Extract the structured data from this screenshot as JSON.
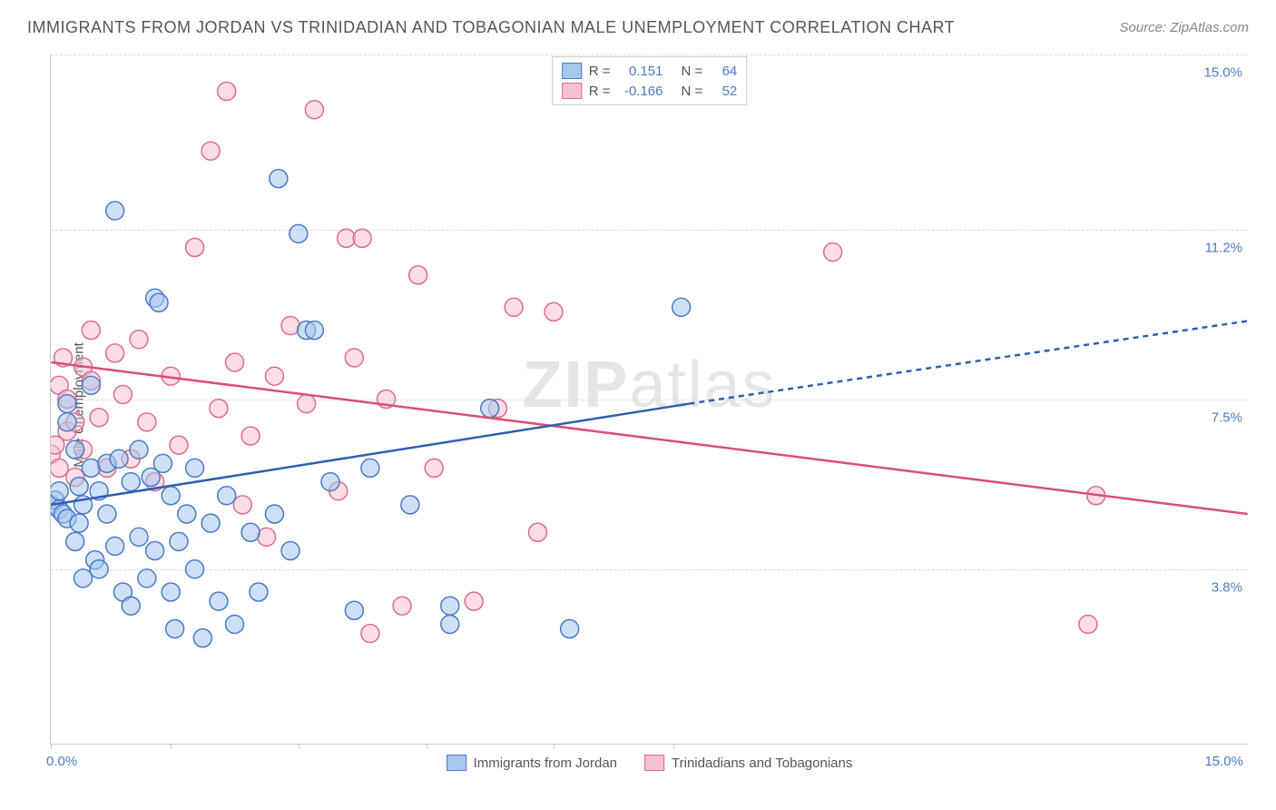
{
  "title": "IMMIGRANTS FROM JORDAN VS TRINIDADIAN AND TOBAGONIAN MALE UNEMPLOYMENT CORRELATION CHART",
  "source_label": "Source: ZipAtlas.com",
  "ylabel": "Male Unemployment",
  "watermark_bold": "ZIP",
  "watermark_light": "atlas",
  "colors": {
    "blue_fill": "#a6c7ee",
    "blue_stroke": "#4a7ac7",
    "pink_fill": "#f7c2cf",
    "pink_stroke": "#e06b8b",
    "blue_line": "#2e5fb0",
    "pink_line": "#d94f75",
    "grid": "#dddddd",
    "text": "#555555",
    "accent": "#4a7ac7",
    "background": "#ffffff"
  },
  "chart": {
    "type": "scatter",
    "xlim": [
      0,
      15
    ],
    "ylim": [
      0,
      15
    ],
    "ytick_positions": [
      3.8,
      7.5,
      11.2,
      15.0
    ],
    "ytick_labels": [
      "3.8%",
      "7.5%",
      "11.2%",
      "15.0%"
    ],
    "xtick_positions": [
      0,
      1.5,
      3.1,
      4.7,
      6.3,
      7.8
    ],
    "x_min_label": "0.0%",
    "x_max_label": "15.0%",
    "marker_radius": 10,
    "marker_opacity": 0.55,
    "line_width": 2.5
  },
  "legend_top": {
    "r_label": "R  =",
    "n_label": "N  =",
    "rows": [
      {
        "swatch": "blue",
        "r": "0.151",
        "n": "64"
      },
      {
        "swatch": "pink",
        "r": "-0.166",
        "n": "52"
      }
    ]
  },
  "legend_bottom": [
    {
      "swatch": "blue",
      "label": "Immigrants from Jordan"
    },
    {
      "swatch": "pink",
      "label": "Trinidadians and Tobagonians"
    }
  ],
  "series_blue": {
    "points": [
      [
        0.0,
        5.2
      ],
      [
        0.05,
        5.3
      ],
      [
        0.1,
        5.1
      ],
      [
        0.1,
        5.5
      ],
      [
        0.15,
        5.0
      ],
      [
        0.2,
        7.0
      ],
      [
        0.2,
        7.4
      ],
      [
        0.2,
        4.9
      ],
      [
        0.3,
        6.4
      ],
      [
        0.3,
        4.4
      ],
      [
        0.35,
        5.6
      ],
      [
        0.35,
        4.8
      ],
      [
        0.4,
        5.2
      ],
      [
        0.4,
        3.6
      ],
      [
        0.5,
        7.8
      ],
      [
        0.5,
        6.0
      ],
      [
        0.55,
        4.0
      ],
      [
        0.6,
        5.5
      ],
      [
        0.6,
        3.8
      ],
      [
        0.7,
        6.1
      ],
      [
        0.7,
        5.0
      ],
      [
        0.8,
        11.6
      ],
      [
        0.8,
        4.3
      ],
      [
        0.85,
        6.2
      ],
      [
        0.9,
        3.3
      ],
      [
        1.0,
        5.7
      ],
      [
        1.0,
        3.0
      ],
      [
        1.1,
        6.4
      ],
      [
        1.1,
        4.5
      ],
      [
        1.2,
        3.6
      ],
      [
        1.25,
        5.8
      ],
      [
        1.3,
        9.7
      ],
      [
        1.3,
        4.2
      ],
      [
        1.35,
        9.6
      ],
      [
        1.4,
        6.1
      ],
      [
        1.5,
        3.3
      ],
      [
        1.5,
        5.4
      ],
      [
        1.55,
        2.5
      ],
      [
        1.6,
        4.4
      ],
      [
        1.7,
        5.0
      ],
      [
        1.8,
        6.0
      ],
      [
        1.8,
        3.8
      ],
      [
        1.9,
        2.3
      ],
      [
        2.0,
        4.8
      ],
      [
        2.1,
        3.1
      ],
      [
        2.2,
        5.4
      ],
      [
        2.3,
        2.6
      ],
      [
        2.5,
        4.6
      ],
      [
        2.6,
        3.3
      ],
      [
        2.8,
        5.0
      ],
      [
        2.85,
        12.3
      ],
      [
        3.0,
        4.2
      ],
      [
        3.1,
        11.1
      ],
      [
        3.2,
        9.0
      ],
      [
        3.3,
        9.0
      ],
      [
        3.5,
        5.7
      ],
      [
        3.8,
        2.9
      ],
      [
        4.0,
        6.0
      ],
      [
        4.5,
        5.2
      ],
      [
        5.0,
        2.6
      ],
      [
        5.0,
        3.0
      ],
      [
        5.5,
        7.3
      ],
      [
        6.5,
        2.5
      ],
      [
        7.9,
        9.5
      ]
    ],
    "regression": {
      "x1": 0,
      "y1": 5.2,
      "x2": 8.0,
      "y2": 7.4,
      "x3": 15.0,
      "y3": 9.2
    }
  },
  "series_pink": {
    "points": [
      [
        0.0,
        6.3
      ],
      [
        0.05,
        6.5
      ],
      [
        0.1,
        7.8
      ],
      [
        0.1,
        6.0
      ],
      [
        0.15,
        8.4
      ],
      [
        0.2,
        6.8
      ],
      [
        0.2,
        7.5
      ],
      [
        0.3,
        7.0
      ],
      [
        0.3,
        5.8
      ],
      [
        0.4,
        8.2
      ],
      [
        0.4,
        6.4
      ],
      [
        0.5,
        7.9
      ],
      [
        0.5,
        9.0
      ],
      [
        0.6,
        7.1
      ],
      [
        0.7,
        6.0
      ],
      [
        0.8,
        8.5
      ],
      [
        0.9,
        7.6
      ],
      [
        1.0,
        6.2
      ],
      [
        1.1,
        8.8
      ],
      [
        1.2,
        7.0
      ],
      [
        1.3,
        5.7
      ],
      [
        1.5,
        8.0
      ],
      [
        1.6,
        6.5
      ],
      [
        1.8,
        10.8
      ],
      [
        2.0,
        12.9
      ],
      [
        2.1,
        7.3
      ],
      [
        2.2,
        14.2
      ],
      [
        2.3,
        8.3
      ],
      [
        2.4,
        5.2
      ],
      [
        2.5,
        6.7
      ],
      [
        2.7,
        4.5
      ],
      [
        2.8,
        8.0
      ],
      [
        3.0,
        9.1
      ],
      [
        3.2,
        7.4
      ],
      [
        3.3,
        13.8
      ],
      [
        3.6,
        5.5
      ],
      [
        3.7,
        11.0
      ],
      [
        3.8,
        8.4
      ],
      [
        3.9,
        11.0
      ],
      [
        4.0,
        2.4
      ],
      [
        4.2,
        7.5
      ],
      [
        4.4,
        3.0
      ],
      [
        4.6,
        10.2
      ],
      [
        4.8,
        6.0
      ],
      [
        5.3,
        3.1
      ],
      [
        5.6,
        7.3
      ],
      [
        5.8,
        9.5
      ],
      [
        6.1,
        4.6
      ],
      [
        6.3,
        9.4
      ],
      [
        9.8,
        10.7
      ],
      [
        13.0,
        2.6
      ],
      [
        13.1,
        5.4
      ]
    ],
    "regression": {
      "x1": 0,
      "y1": 8.3,
      "x2": 15.0,
      "y2": 5.0
    }
  }
}
